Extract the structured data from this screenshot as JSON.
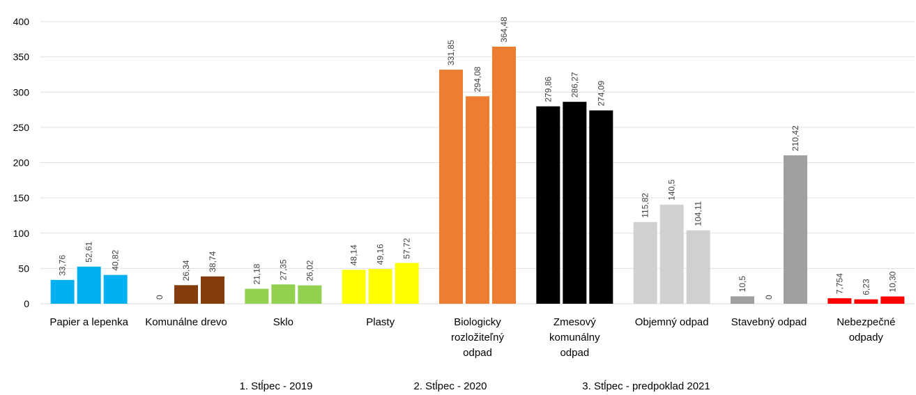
{
  "chart_data": {
    "type": "bar",
    "categories": [
      "Papier a lepenka",
      "Komunálne drevo",
      "Sklo",
      "Plasty",
      "Biologicky rozložiteľný odpad",
      "Zmesový komunálny odpad",
      "Objemný odpad",
      "Stavebný odpad",
      "Nebezpečné odpady"
    ],
    "category_lines": [
      [
        "Papier a lepenka"
      ],
      [
        "Komunálne drevo"
      ],
      [
        "Sklo"
      ],
      [
        "Plasty"
      ],
      [
        "Biologicky",
        "rozložiteľný",
        "odpad"
      ],
      [
        "Zmesový",
        "komunálny",
        "odpad"
      ],
      [
        "Objemný odpad"
      ],
      [
        "Stavebný odpad"
      ],
      [
        "Nebezpečné",
        "odpady"
      ]
    ],
    "series": [
      {
        "name": "1. Stĺpec - 2019",
        "values": [
          33.76,
          0,
          21.18,
          48.14,
          331.85,
          279.86,
          115.82,
          10.5,
          7.754
        ]
      },
      {
        "name": "2. Stĺpec - 2020",
        "values": [
          52.61,
          26.34,
          27.35,
          49.16,
          294.08,
          286.27,
          140.5,
          0,
          6.23
        ]
      },
      {
        "name": "3. Stĺpec - predpoklad 2021",
        "values": [
          40.82,
          38.74,
          26.02,
          57.72,
          364.48,
          274.09,
          104.11,
          210.42,
          10.3
        ]
      }
    ],
    "data_labels": [
      [
        "33,76",
        "52,61",
        "40,82"
      ],
      [
        "0",
        "26,34",
        "38,74"
      ],
      [
        "21,18",
        "27,35",
        "26,02"
      ],
      [
        "48,14",
        "49,16",
        "57,72"
      ],
      [
        "331,85",
        "294,08",
        "364,48"
      ],
      [
        "279,86",
        "286,27",
        "274,09"
      ],
      [
        "115,82",
        "140,5",
        "104,11"
      ],
      [
        "10,5",
        "0",
        "210,42"
      ],
      [
        "7,754",
        "6,23",
        "10,30"
      ]
    ],
    "category_colors": [
      "#00b0f0",
      "#843c0c",
      "#92d050",
      "#ffff00",
      "#ed7d31",
      "#000000",
      "#d0d0d0",
      "#a0a0a0",
      "#ff0000"
    ],
    "y_ticks": [
      0,
      50,
      100,
      150,
      200,
      250,
      300,
      350,
      400
    ],
    "ylim": [
      0,
      400
    ],
    "title": "",
    "xlabel": "",
    "ylabel": "",
    "grid": true,
    "legend_position": "bottom"
  }
}
